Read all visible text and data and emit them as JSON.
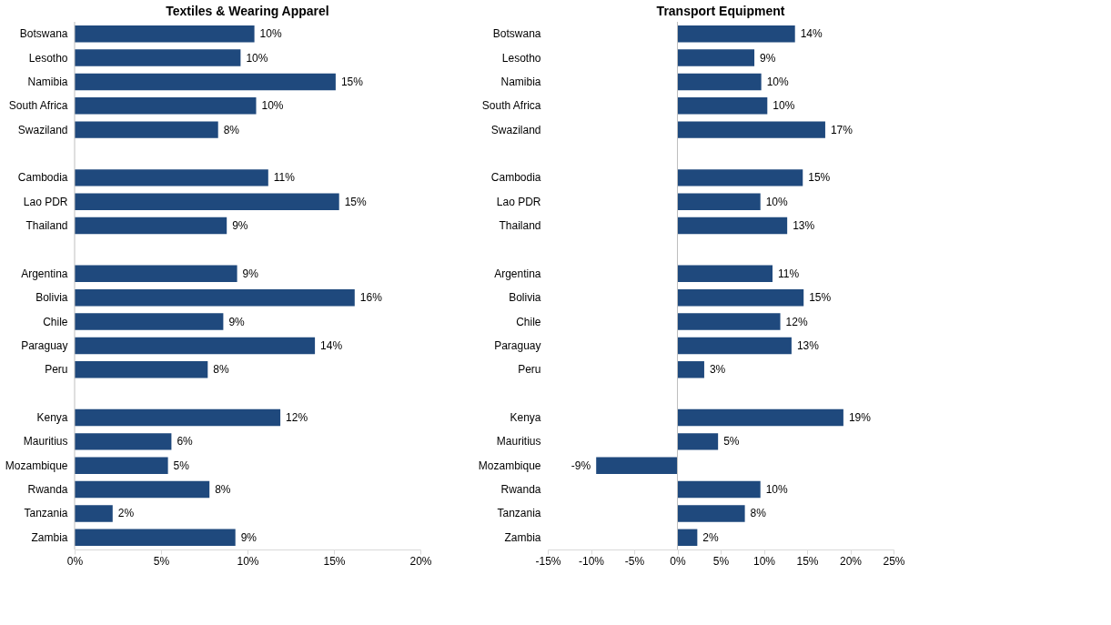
{
  "chart_data": [
    {
      "type": "bar",
      "orientation": "horizontal",
      "title": "Textiles & Wearing Apparel",
      "categories": [
        "Botswana",
        "Lesotho",
        "Namibia",
        "South Africa",
        "Swaziland",
        null,
        "Cambodia",
        "Lao PDR",
        "Thailand",
        null,
        "Argentina",
        "Bolivia",
        "Chile",
        "Paraguay",
        "Peru",
        null,
        "Kenya",
        "Mauritius",
        "Mozambique",
        "Rwanda",
        "Tanzania",
        "Zambia"
      ],
      "values": [
        10.4,
        9.6,
        15.1,
        10.5,
        8.3,
        null,
        11.2,
        15.3,
        8.8,
        null,
        9.4,
        16.2,
        8.6,
        13.9,
        7.7,
        null,
        11.9,
        5.6,
        5.4,
        7.8,
        2.2,
        9.3
      ],
      "value_labels": [
        "10%",
        "10%",
        "15%",
        "10%",
        "8%",
        null,
        "11%",
        "15%",
        "9%",
        null,
        "9%",
        "16%",
        "9%",
        "14%",
        "8%",
        null,
        "12%",
        "6%",
        "5%",
        "8%",
        "2%",
        "9%"
      ],
      "color": "#1f497d",
      "xlim": [
        0,
        20
      ],
      "xticks": [
        {
          "value": 0,
          "label": "0%"
        },
        {
          "value": 5,
          "label": "5%"
        },
        {
          "value": 10,
          "label": "10%"
        },
        {
          "value": 15,
          "label": "15%"
        },
        {
          "value": 20,
          "label": "20%"
        }
      ]
    },
    {
      "type": "bar",
      "orientation": "horizontal",
      "title": "Transport Equipment",
      "categories": [
        "Botswana",
        "Lesotho",
        "Namibia",
        "South Africa",
        "Swaziland",
        null,
        "Cambodia",
        "Lao PDR",
        "Thailand",
        null,
        "Argentina",
        "Bolivia",
        "Chile",
        "Paraguay",
        "Peru",
        null,
        "Kenya",
        "Mauritius",
        "Mozambique",
        "Rwanda",
        "Tanzania",
        "Zambia"
      ],
      "values": [
        13.6,
        8.9,
        9.7,
        10.4,
        17.1,
        null,
        14.5,
        9.6,
        12.7,
        null,
        11.0,
        14.6,
        11.9,
        13.2,
        3.1,
        null,
        19.2,
        4.7,
        -9.4,
        9.6,
        7.8,
        2.3
      ],
      "value_labels": [
        "14%",
        "9%",
        "10%",
        "10%",
        "17%",
        null,
        "15%",
        "10%",
        "13%",
        null,
        "11%",
        "15%",
        "12%",
        "13%",
        "3%",
        null,
        "19%",
        "5%",
        "-9%",
        "10%",
        "8%",
        "2%"
      ],
      "color": "#1f497d",
      "xlim": [
        -15,
        25
      ],
      "xticks": [
        {
          "value": -15,
          "label": "-15%"
        },
        {
          "value": -10,
          "label": "-10%"
        },
        {
          "value": -5,
          "label": "-5%"
        },
        {
          "value": 0,
          "label": "0%"
        },
        {
          "value": 5,
          "label": "5%"
        },
        {
          "value": 10,
          "label": "10%"
        },
        {
          "value": 15,
          "label": "15%"
        },
        {
          "value": 20,
          "label": "20%"
        },
        {
          "value": 25,
          "label": "25%"
        }
      ]
    }
  ]
}
